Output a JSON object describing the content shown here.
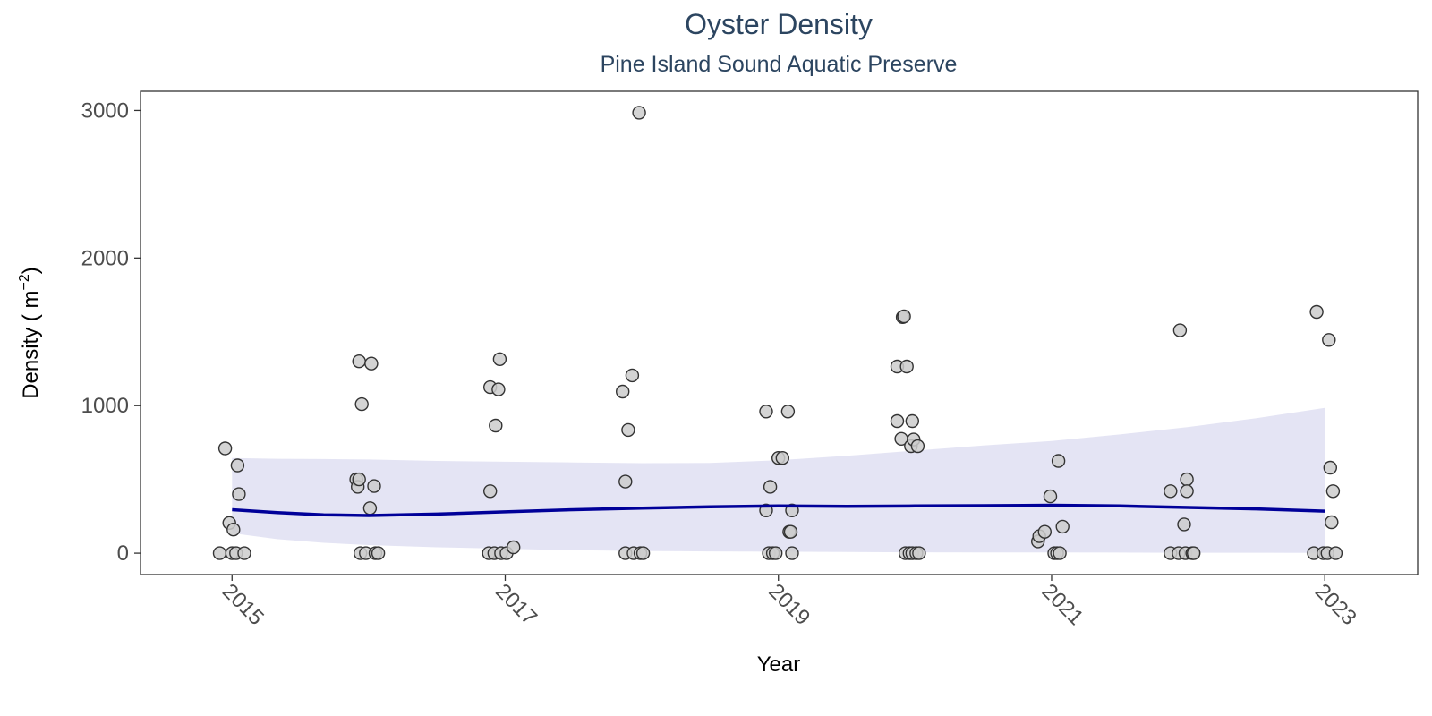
{
  "chart_data": {
    "type": "scatter",
    "title": "Oyster Density",
    "subtitle": "Pine Island Sound Aquatic Preserve",
    "xlabel": "Year",
    "ylabel": {
      "base": "Density ( m",
      "sup": "−2",
      "close": ")"
    },
    "xlim": [
      2014.33,
      2023.68
    ],
    "ylim": [
      -145,
      3130
    ],
    "x_ticks": [
      2015,
      2017,
      2019,
      2021,
      2023
    ],
    "x_tick_labels": [
      "2015",
      "2017",
      "2019",
      "2021",
      "2023"
    ],
    "y_ticks": [
      0,
      1000,
      2000,
      3000
    ],
    "y_tick_labels": [
      "0",
      "1000",
      "2000",
      "3000"
    ],
    "grid": false,
    "colors": {
      "point_fill": "#cccccc",
      "point_stroke": "#333333",
      "trend_line": "#000099",
      "confidence_band": "#e4e4f4",
      "title": "#2c4560",
      "frame": "#333333"
    },
    "points": [
      {
        "x": 2014.91,
        "y": 0
      },
      {
        "x": 2014.95,
        "y": 710
      },
      {
        "x": 2014.98,
        "y": 205
      },
      {
        "x": 2015.0,
        "y": 0
      },
      {
        "x": 2015.01,
        "y": 160
      },
      {
        "x": 2015.03,
        "y": 0
      },
      {
        "x": 2015.04,
        "y": 595
      },
      {
        "x": 2015.05,
        "y": 400
      },
      {
        "x": 2015.09,
        "y": 0
      },
      {
        "x": 2015.91,
        "y": 500
      },
      {
        "x": 2015.92,
        "y": 450
      },
      {
        "x": 2015.93,
        "y": 500
      },
      {
        "x": 2015.93,
        "y": 1300
      },
      {
        "x": 2015.94,
        "y": 0
      },
      {
        "x": 2015.95,
        "y": 1010
      },
      {
        "x": 2015.98,
        "y": 0
      },
      {
        "x": 2016.01,
        "y": 305
      },
      {
        "x": 2016.02,
        "y": 1285
      },
      {
        "x": 2016.04,
        "y": 455
      },
      {
        "x": 2016.05,
        "y": 0
      },
      {
        "x": 2016.07,
        "y": 0
      },
      {
        "x": 2016.88,
        "y": 0
      },
      {
        "x": 2016.89,
        "y": 420
      },
      {
        "x": 2016.89,
        "y": 1125
      },
      {
        "x": 2016.92,
        "y": 0
      },
      {
        "x": 2016.93,
        "y": 865
      },
      {
        "x": 2016.95,
        "y": 1110
      },
      {
        "x": 2016.96,
        "y": 1315
      },
      {
        "x": 2016.97,
        "y": 0
      },
      {
        "x": 2017.01,
        "y": 0
      },
      {
        "x": 2017.06,
        "y": 40
      },
      {
        "x": 2017.86,
        "y": 1095
      },
      {
        "x": 2017.88,
        "y": 0
      },
      {
        "x": 2017.88,
        "y": 485
      },
      {
        "x": 2017.9,
        "y": 835
      },
      {
        "x": 2017.93,
        "y": 1205
      },
      {
        "x": 2017.94,
        "y": 0
      },
      {
        "x": 2017.98,
        "y": 2985
      },
      {
        "x": 2017.99,
        "y": 0
      },
      {
        "x": 2018.01,
        "y": 0
      },
      {
        "x": 2018.91,
        "y": 960
      },
      {
        "x": 2018.91,
        "y": 290
      },
      {
        "x": 2018.93,
        "y": 0
      },
      {
        "x": 2018.94,
        "y": 450
      },
      {
        "x": 2018.96,
        "y": 0
      },
      {
        "x": 2018.98,
        "y": 0
      },
      {
        "x": 2019.0,
        "y": 645
      },
      {
        "x": 2019.03,
        "y": 645
      },
      {
        "x": 2019.07,
        "y": 960
      },
      {
        "x": 2019.08,
        "y": 145
      },
      {
        "x": 2019.09,
        "y": 145
      },
      {
        "x": 2019.1,
        "y": 0
      },
      {
        "x": 2019.1,
        "y": 290
      },
      {
        "x": 2019.87,
        "y": 895
      },
      {
        "x": 2019.87,
        "y": 1265
      },
      {
        "x": 2019.9,
        "y": 775
      },
      {
        "x": 2019.91,
        "y": 1600
      },
      {
        "x": 2019.92,
        "y": 1605
      },
      {
        "x": 2019.93,
        "y": 0
      },
      {
        "x": 2019.94,
        "y": 1265
      },
      {
        "x": 2019.96,
        "y": 0
      },
      {
        "x": 2019.97,
        "y": 725
      },
      {
        "x": 2019.98,
        "y": 0
      },
      {
        "x": 2019.98,
        "y": 895
      },
      {
        "x": 2019.99,
        "y": 770
      },
      {
        "x": 2020.01,
        "y": 0
      },
      {
        "x": 2020.02,
        "y": 725
      },
      {
        "x": 2020.03,
        "y": 0
      },
      {
        "x": 2020.9,
        "y": 80
      },
      {
        "x": 2020.91,
        "y": 115
      },
      {
        "x": 2020.95,
        "y": 145
      },
      {
        "x": 2020.99,
        "y": 385
      },
      {
        "x": 2021.02,
        "y": 0
      },
      {
        "x": 2021.04,
        "y": 0
      },
      {
        "x": 2021.05,
        "y": 625
      },
      {
        "x": 2021.06,
        "y": 0
      },
      {
        "x": 2021.08,
        "y": 180
      },
      {
        "x": 2021.87,
        "y": 420
      },
      {
        "x": 2021.87,
        "y": 0
      },
      {
        "x": 2021.93,
        "y": 0
      },
      {
        "x": 2021.94,
        "y": 1510
      },
      {
        "x": 2021.97,
        "y": 195
      },
      {
        "x": 2021.98,
        "y": 0
      },
      {
        "x": 2021.99,
        "y": 500
      },
      {
        "x": 2021.99,
        "y": 420
      },
      {
        "x": 2022.03,
        "y": 0
      },
      {
        "x": 2022.04,
        "y": 0
      },
      {
        "x": 2022.92,
        "y": 0
      },
      {
        "x": 2022.94,
        "y": 1635
      },
      {
        "x": 2022.99,
        "y": 0
      },
      {
        "x": 2023.02,
        "y": 0
      },
      {
        "x": 2023.03,
        "y": 1445
      },
      {
        "x": 2023.04,
        "y": 580
      },
      {
        "x": 2023.05,
        "y": 210
      },
      {
        "x": 2023.06,
        "y": 420
      },
      {
        "x": 2023.08,
        "y": 0
      }
    ],
    "trend": {
      "x": [
        2015.0,
        2015.33,
        2015.67,
        2016.0,
        2016.5,
        2017.0,
        2017.5,
        2018.0,
        2018.5,
        2019.0,
        2019.5,
        2020.0,
        2020.5,
        2021.0,
        2021.5,
        2022.0,
        2022.5,
        2023.0
      ],
      "y": [
        295,
        275,
        260,
        255,
        265,
        280,
        295,
        305,
        315,
        320,
        317,
        320,
        322,
        325,
        320,
        310,
        300,
        285
      ],
      "ci_low": [
        135,
        95,
        70,
        55,
        40,
        30,
        20,
        15,
        12,
        10,
        8,
        6,
        5,
        5,
        4,
        3,
        3,
        2
      ],
      "ci_high": [
        645,
        640,
        638,
        635,
        625,
        620,
        615,
        610,
        612,
        630,
        660,
        695,
        730,
        760,
        805,
        855,
        915,
        985
      ]
    }
  }
}
